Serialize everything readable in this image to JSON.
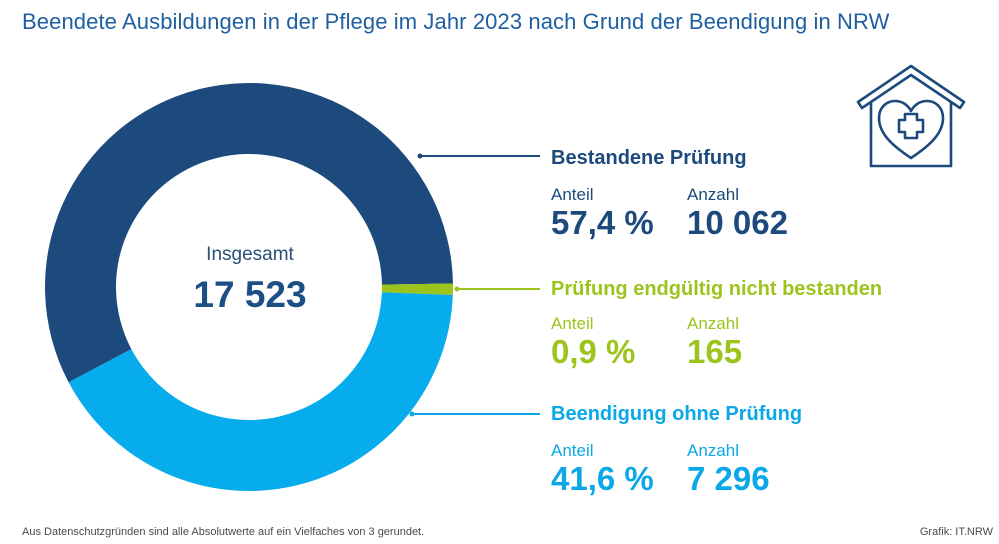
{
  "title": "Beendete Ausbildungen in der Pflege im Jahr 2023 nach Grund der Beendigung in NRW",
  "center": {
    "label": "Insgesamt",
    "value": "17 523"
  },
  "footnote": "Aus Datenschutzgründen sind alle Absolutwerte auf ein Vielfaches von 3 gerundet.",
  "source": "Grafik: IT.NRW",
  "icon": "heart-house-medical-cross-icon",
  "chart_data": {
    "type": "pie",
    "variant": "donut",
    "total": 17523,
    "slices": [
      {
        "name": "Bestandene Prüfung",
        "share_label": "Anteil",
        "share": "57,4 %",
        "share_value": 57.4,
        "count_label": "Anzahl",
        "count": "10 062",
        "count_value": 10062,
        "color": "#1d4a7c"
      },
      {
        "name": "Prüfung endgültig nicht bestanden",
        "share_label": "Anteil",
        "share": "0,9 %",
        "share_value": 0.9,
        "count_label": "Anzahl",
        "count": "165",
        "count_value": 165,
        "color": "#9dc41d"
      },
      {
        "name": "Beendigung ohne Prüfung",
        "share_label": "Anteil",
        "share": "41,6 %",
        "share_value": 41.6,
        "count_label": "Anzahl",
        "count": "7 296",
        "count_value": 7296,
        "color": "#06acec"
      }
    ]
  }
}
